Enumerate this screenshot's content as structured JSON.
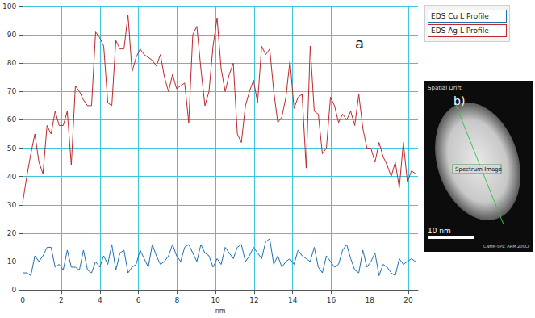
{
  "chart_data": {
    "type": "line",
    "x_label": "nm",
    "panel_label": "a",
    "x": [
      0,
      0.21,
      0.42,
      0.63,
      0.84,
      1.05,
      1.26,
      1.47,
      1.68,
      1.89,
      2.1,
      2.31,
      2.52,
      2.73,
      2.94,
      3.15,
      3.36,
      3.57,
      3.78,
      3.99,
      4.2,
      4.41,
      4.62,
      4.83,
      5.04,
      5.25,
      5.46,
      5.67,
      5.88,
      6.09,
      6.3,
      6.51,
      6.72,
      6.93,
      7.14,
      7.35,
      7.56,
      7.77,
      7.98,
      8.19,
      8.4,
      8.61,
      8.82,
      9.03,
      9.24,
      9.45,
      9.66,
      9.87,
      10.08,
      10.29,
      10.5,
      10.71,
      10.92,
      11.13,
      11.34,
      11.55,
      11.76,
      11.97,
      12.18,
      12.39,
      12.6,
      12.81,
      13.02,
      13.23,
      13.44,
      13.65,
      13.86,
      14.07,
      14.28,
      14.49,
      14.7,
      14.91,
      15.12,
      15.33,
      15.54,
      15.75,
      15.96,
      16.17,
      16.38,
      16.59,
      16.8,
      17.01,
      17.22,
      17.43,
      17.64,
      17.85,
      18.06,
      18.27,
      18.48,
      18.69,
      18.9,
      19.11,
      19.32,
      19.53,
      19.74,
      19.95,
      20.16,
      20.37
    ],
    "series": [
      {
        "name": "EDS Cu L Profile",
        "color": "#1f6fb4",
        "values": [
          6,
          6,
          5,
          12,
          10,
          12,
          15,
          15,
          8,
          9,
          7,
          14,
          8,
          8,
          7,
          14,
          7,
          6,
          10,
          8,
          12,
          9,
          16,
          7,
          13,
          14,
          6,
          8,
          9,
          14,
          11,
          8,
          16,
          12,
          9,
          10,
          12,
          16,
          12,
          10,
          15,
          16,
          13,
          10,
          16,
          13,
          12,
          8,
          11,
          9,
          15,
          13,
          11,
          15,
          16,
          10,
          12,
          15,
          13,
          11,
          17,
          18,
          9,
          12,
          8,
          10,
          11,
          9,
          14,
          12,
          11,
          10,
          15,
          8,
          6,
          12,
          10,
          8,
          9,
          14,
          16,
          11,
          7,
          6,
          14,
          8,
          10,
          13,
          5,
          9,
          8,
          6,
          5,
          11,
          9,
          10,
          11,
          10
        ]
      },
      {
        "name": "EDS Ag L Profile",
        "color": "#c0282d",
        "values": [
          31,
          40,
          48,
          55,
          45,
          41,
          58,
          55,
          63,
          58,
          58,
          63,
          44,
          72,
          70,
          67,
          65,
          65,
          91,
          89,
          86,
          66,
          65,
          88,
          85,
          85,
          97,
          77,
          82,
          85,
          83,
          82,
          81,
          79,
          83,
          75,
          70,
          76,
          71,
          72,
          73,
          59,
          90,
          93,
          78,
          65,
          70,
          86,
          96,
          78,
          70,
          76,
          80,
          55,
          52,
          65,
          70,
          74,
          66,
          86,
          83,
          85,
          70,
          59,
          61,
          68,
          81,
          64,
          68,
          69,
          43,
          86,
          63,
          62,
          48,
          50,
          68,
          65,
          59,
          62,
          60,
          63,
          58,
          69,
          57,
          50,
          50,
          45,
          52,
          47,
          44,
          40,
          45,
          36,
          52,
          38,
          42,
          41
        ]
      }
    ],
    "xlim": [
      0,
      20.5
    ],
    "xticks": [
      0,
      2,
      4,
      6,
      8,
      10,
      12,
      14,
      16,
      18,
      20
    ],
    "ylim": [
      0,
      100
    ],
    "yticks": [
      0,
      10,
      20,
      30,
      40,
      50,
      60,
      70,
      80,
      90,
      100
    ],
    "grid": true,
    "legend": "right",
    "panel_b": {
      "label": "b)",
      "top_text": "Spatial Drift",
      "box_text": "Spectrum Image",
      "scale_bar": "10 nm",
      "footer": "CNMN-SPL: ARM 200CF"
    }
  }
}
